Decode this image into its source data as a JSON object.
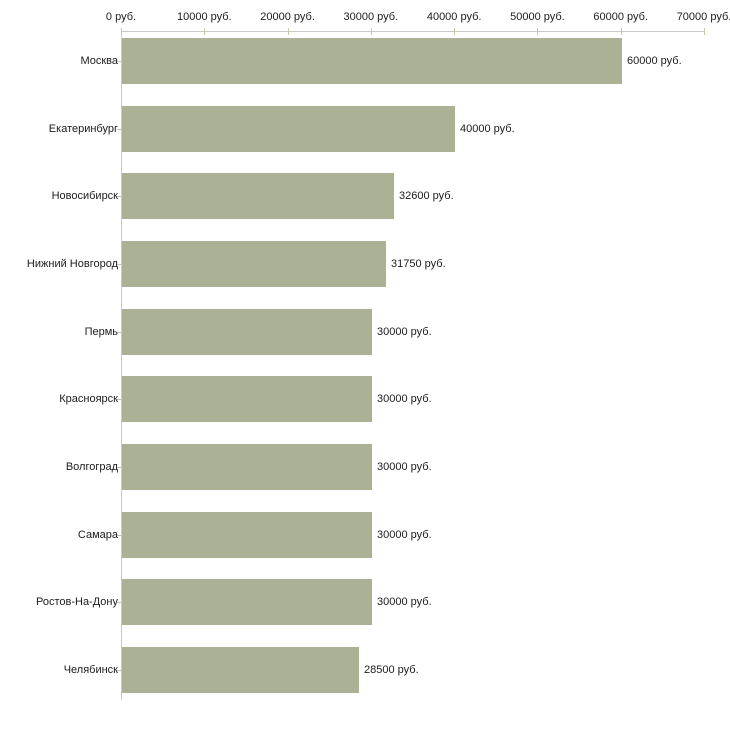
{
  "chart_data": {
    "type": "bar",
    "orientation": "horizontal",
    "title": "",
    "xlabel": "",
    "ylabel": "",
    "unit": "руб.",
    "categories": [
      "Москва",
      "Екатеринбург",
      "Новосибирск",
      "Нижний Новгород",
      "Пермь",
      "Красноярск",
      "Волгоград",
      "Самара",
      "Ростов-На-Дону",
      "Челябинск"
    ],
    "values": [
      60000,
      40000,
      32600,
      31750,
      30000,
      30000,
      30000,
      30000,
      30000,
      28500
    ],
    "bar_labels": [
      "60000 руб.",
      "40000 руб.",
      "32600 руб.",
      "31750 руб.",
      "30000 руб.",
      "30000 руб.",
      "30000 руб.",
      "30000 руб.",
      "30000 руб.",
      "28500 руб."
    ],
    "x_axis": {
      "position": "top",
      "xlim": [
        0,
        70000
      ],
      "ticks": [
        0,
        10000,
        20000,
        30000,
        40000,
        50000,
        60000,
        70000
      ],
      "tick_labels": [
        "0 руб.",
        "10000 руб.",
        "20000 руб.",
        "30000 руб.",
        "40000 руб.",
        "50000 руб.",
        "60000 руб.",
        "70000 руб."
      ]
    },
    "grid": false,
    "legend": false,
    "colors": {
      "bar_fill": "#abb195",
      "axis_line": "#c9c9c9",
      "top_tick": "#c9c9a3",
      "left_tick": "#c2c2b6",
      "text": "#1c1c1c"
    }
  }
}
